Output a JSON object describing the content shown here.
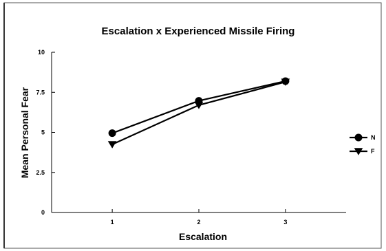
{
  "chart_data": {
    "type": "line",
    "title": "Escalation x Experienced Missile Firing",
    "xlabel": "Escalation",
    "ylabel": "Mean Personal Fear",
    "categories": [
      "1",
      "2",
      "3"
    ],
    "x": [
      1,
      2,
      3
    ],
    "xlim": [
      0.3,
      3.7
    ],
    "ylim": [
      0,
      10
    ],
    "yticks": [
      0,
      2.5,
      5,
      7.5,
      10
    ],
    "ytick_labels": [
      "0",
      "2.5",
      "5",
      "7.5",
      "10"
    ],
    "grid": false,
    "legend_position": "right",
    "series": [
      {
        "name": "N",
        "marker": "circle",
        "values": [
          4.95,
          6.97,
          8.2
        ]
      },
      {
        "name": "F",
        "marker": "triangle-down",
        "values": [
          4.25,
          6.7,
          8.15
        ]
      }
    ]
  },
  "colors": {
    "line": "#000000",
    "frame": "#555555",
    "background": "#ffffff"
  }
}
